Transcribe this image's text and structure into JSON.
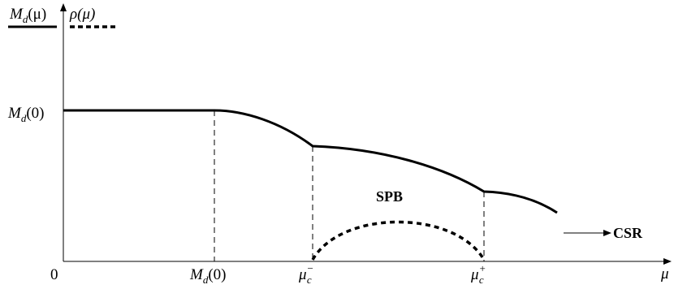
{
  "legend": {
    "md_label": "M_d(μ)",
    "md_label_base": "M",
    "md_label_sub": "d",
    "md_label_arg": "(μ)",
    "rho_label": "ρ(μ)"
  },
  "axes": {
    "x_label": "μ",
    "origin_label": "0",
    "y_tick_label_base": "M",
    "y_tick_label_sub": "d",
    "y_tick_label_arg": "(0)"
  },
  "x_ticks": [
    {
      "base": "M",
      "sub": "d",
      "sup": "",
      "arg": "(0)"
    },
    {
      "base": "μ",
      "sub": "c",
      "sup": "−",
      "arg": ""
    },
    {
      "base": "μ",
      "sub": "c",
      "sup": "+",
      "arg": ""
    }
  ],
  "regions": {
    "spb": "SPB",
    "csr": "CSR"
  },
  "series": {
    "md": "solid thick line",
    "rho": "dotted thick line"
  },
  "colors": {
    "ink": "#000000",
    "background": "#ffffff"
  }
}
